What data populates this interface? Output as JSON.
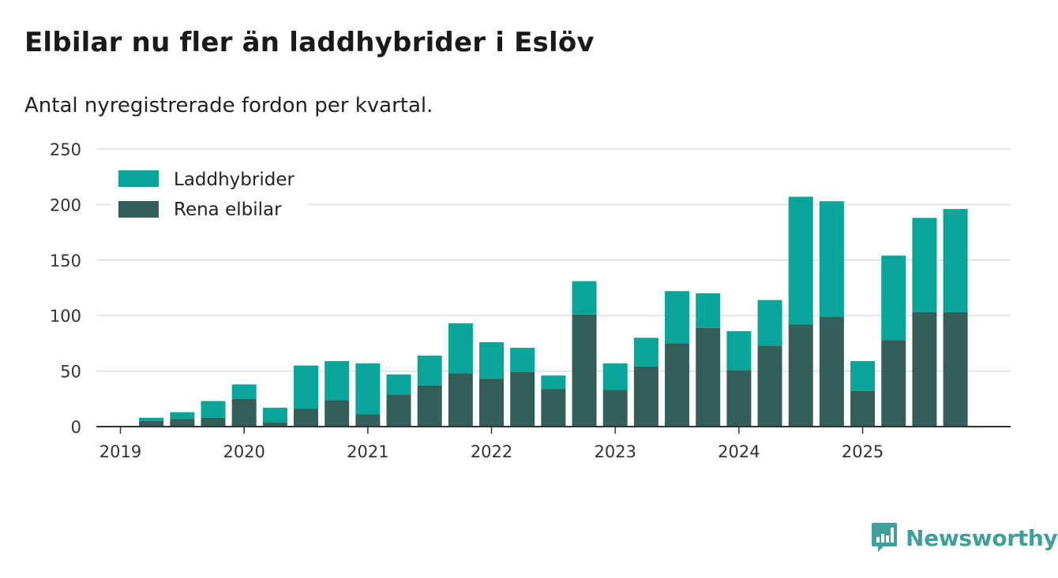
{
  "title": "Elbilar nu fler än laddhybrider i Eslöv",
  "subtitle": "Antal nyregistrerade fordon per kvartal.",
  "brand": {
    "name": "Newsworthy"
  },
  "colors": {
    "phev": "#0aa59a",
    "bev": "#335f5b",
    "grid": "#dddddd",
    "axis": "#333333",
    "brand": "#3f9f9a"
  },
  "chart_data": {
    "type": "bar",
    "stacked": true,
    "title": "Elbilar nu fler än laddhybrider i Eslöv",
    "subtitle": "Antal nyregistrerade fordon per kvartal.",
    "xlabel": "",
    "ylabel": "",
    "ylim": [
      0,
      250
    ],
    "yticks": [
      0,
      50,
      100,
      150,
      200,
      250
    ],
    "year_labels": [
      "2019",
      "2020",
      "2021",
      "2022",
      "2023",
      "2024",
      "2025"
    ],
    "legend_position": "top-left",
    "categories": [
      "2019 Q1",
      "2019 Q2",
      "2019 Q3",
      "2019 Q4",
      "2020 Q1",
      "2020 Q2",
      "2020 Q3",
      "2020 Q4",
      "2021 Q1",
      "2021 Q2",
      "2021 Q3",
      "2021 Q4",
      "2022 Q1",
      "2022 Q2",
      "2022 Q3",
      "2022 Q4",
      "2023 Q1",
      "2023 Q2",
      "2023 Q3",
      "2023 Q4",
      "2024 Q1",
      "2024 Q2",
      "2024 Q3",
      "2024 Q4",
      "2025 Q1",
      "2025 Q2",
      "2025 Q3",
      "2025 Q4"
    ],
    "series": [
      {
        "name": "Rena elbilar",
        "color": "#335f5b",
        "values": [
          0,
          5,
          7,
          8,
          25,
          4,
          16,
          24,
          11,
          29,
          37,
          48,
          43,
          49,
          34,
          101,
          33,
          54,
          75,
          89,
          51,
          73,
          92,
          99,
          32,
          78,
          103,
          103
        ]
      },
      {
        "name": "Laddhybrider",
        "color": "#0aa59a",
        "values": [
          0,
          3,
          6,
          15,
          13,
          13,
          39,
          35,
          46,
          18,
          27,
          45,
          33,
          22,
          12,
          30,
          24,
          26,
          47,
          31,
          35,
          41,
          115,
          104,
          27,
          76,
          85,
          93
        ]
      }
    ]
  }
}
